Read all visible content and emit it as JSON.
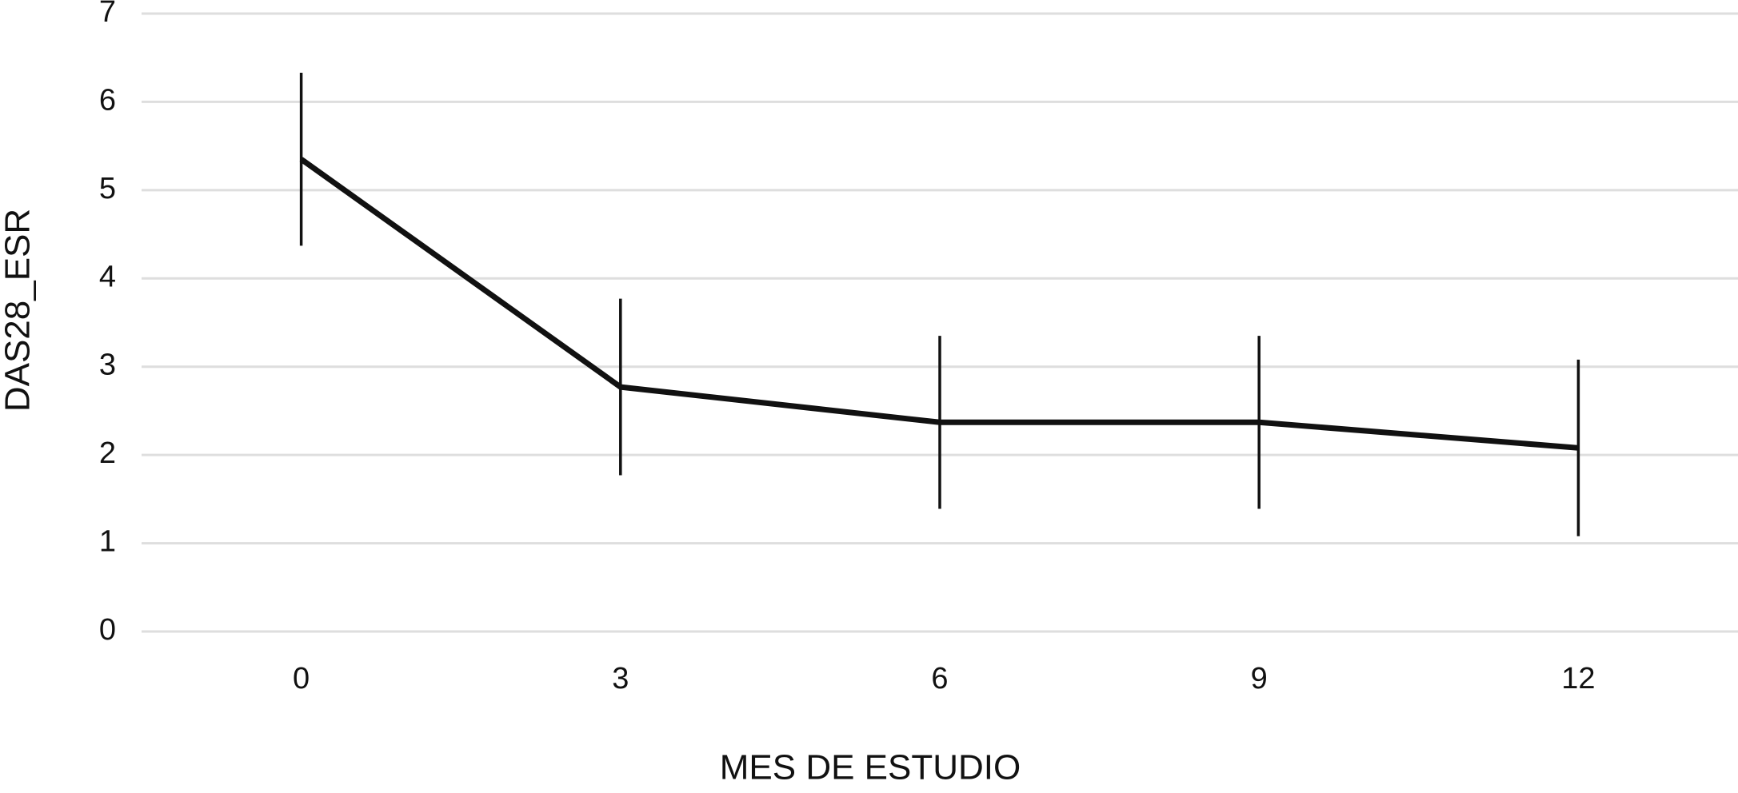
{
  "chart_data": {
    "type": "line",
    "xlabel": "MES DE ESTUDIO",
    "ylabel": "DAS28_ESR",
    "x": [
      0,
      3,
      6,
      9,
      12
    ],
    "values": [
      5.35,
      2.77,
      2.37,
      2.37,
      2.08
    ],
    "errors": [
      0.98,
      1.0,
      0.98,
      0.98,
      1.0
    ],
    "color": "#111111",
    "xlim": [
      -1.5,
      13.5
    ],
    "ylim": [
      0,
      7
    ],
    "xticks": [
      0,
      3,
      6,
      9,
      12
    ],
    "yticks": [
      0,
      1,
      2,
      3,
      4,
      5,
      6,
      7
    ],
    "grid": true
  }
}
